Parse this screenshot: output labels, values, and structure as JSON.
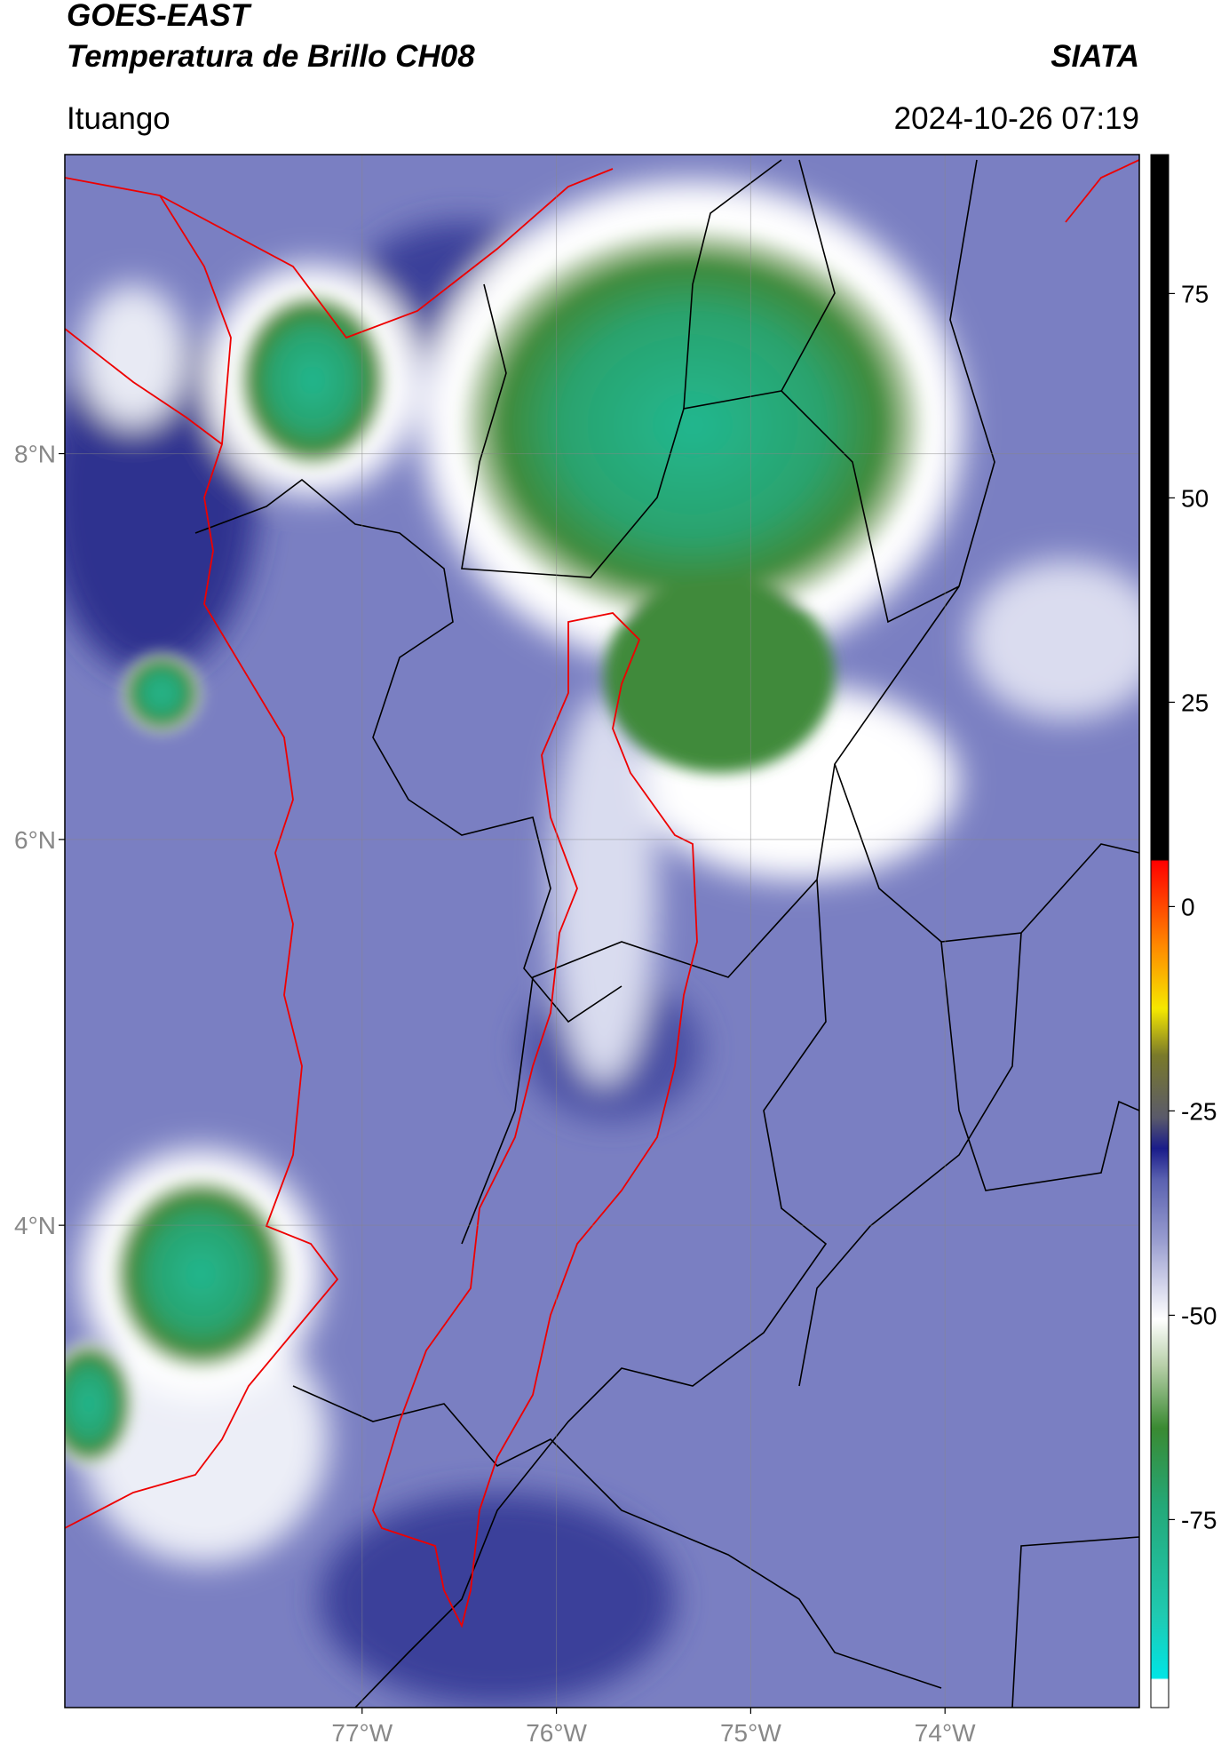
{
  "header": {
    "title": "GOES-EAST",
    "subtitle": "Temperatura de Brillo CH08",
    "organization": "SIATA",
    "region": "Ituango",
    "datetime": "2024-10-26 07:19"
  },
  "map": {
    "xlim": [
      -78.53,
      -73.0
    ],
    "ylim": [
      1.5,
      9.55
    ],
    "xticks": [
      {
        "value": -77,
        "label": "77°W"
      },
      {
        "value": -76,
        "label": "76°W"
      },
      {
        "value": -75,
        "label": "75°W"
      },
      {
        "value": -74,
        "label": "74°W"
      }
    ],
    "yticks": [
      {
        "value": 8,
        "label": "8°N"
      },
      {
        "value": 6,
        "label": "6°N"
      },
      {
        "value": 4,
        "label": "4°N"
      }
    ]
  },
  "colorbar": {
    "lim": [
      -98,
      92
    ],
    "ticks": [
      75,
      50,
      25,
      0,
      -25,
      -50,
      -75
    ]
  }
}
